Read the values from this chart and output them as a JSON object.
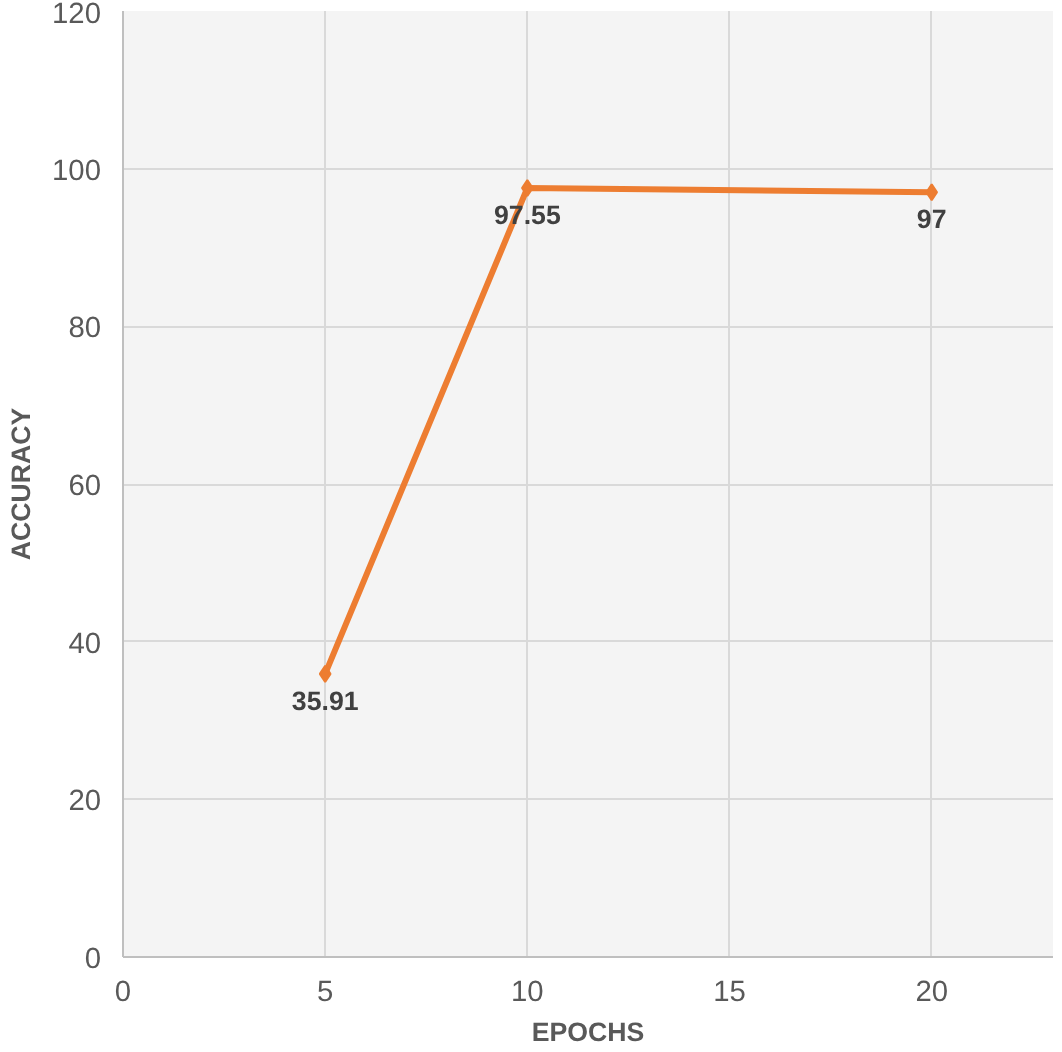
{
  "chart_data": {
    "type": "line",
    "xlabel": "EPOCHS",
    "ylabel": "ACCURACY",
    "x": [
      5,
      10,
      20
    ],
    "series": [
      {
        "color": "#ed7d31",
        "values": [
          35.91,
          97.55,
          97
        ]
      }
    ],
    "xlim": [
      0,
      23
    ],
    "xticks": [
      0,
      5,
      10,
      15,
      20
    ],
    "ylim": [
      0,
      120
    ],
    "yticks": [
      0,
      20,
      40,
      60,
      80,
      100,
      120
    ],
    "grid": true,
    "marker": "diamond",
    "data_labels": true
  }
}
